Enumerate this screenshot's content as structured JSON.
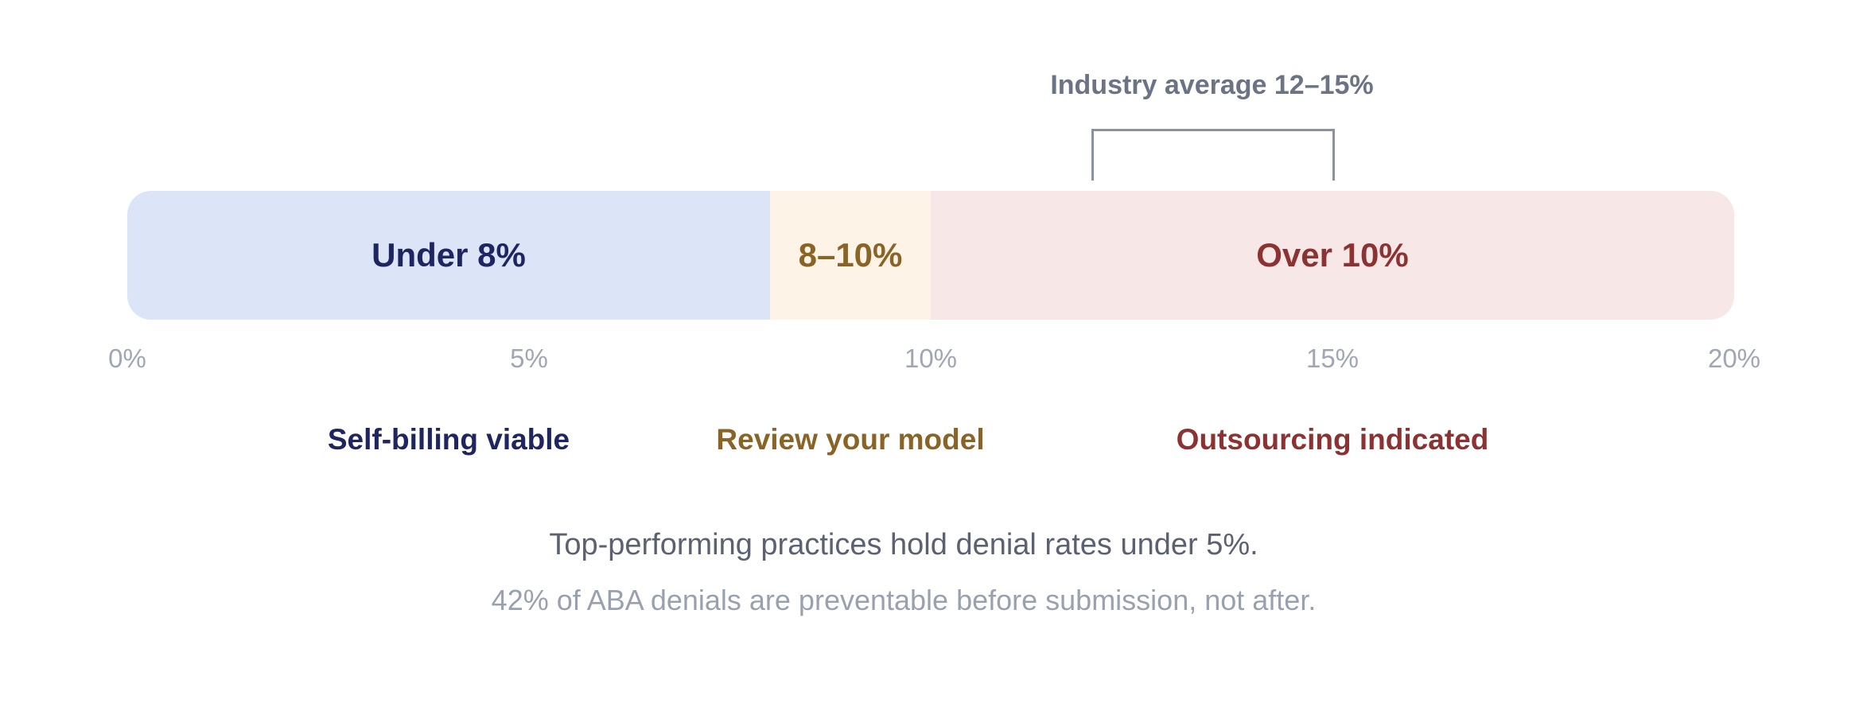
{
  "scale": {
    "min": 0,
    "max": 20,
    "unit": "%",
    "ticks": [
      "0%",
      "5%",
      "10%",
      "15%",
      "20%"
    ]
  },
  "zones": [
    {
      "label": "Under 8%",
      "from": 0,
      "to": 8,
      "fill": "#dce5f7",
      "text_color": "#1e2560",
      "caption": "Self-billing viable"
    },
    {
      "label": "8–10%",
      "from": 8,
      "to": 10,
      "fill": "#fdf3e6",
      "text_color": "#8a6326",
      "caption": "Review your model"
    },
    {
      "label": "Over 10%",
      "from": 10,
      "to": 20,
      "fill": "#f7e7e6",
      "text_color": "#8c3232",
      "caption": "Outsourcing indicated"
    }
  ],
  "industry_average": {
    "label": "Industry average 12–15%",
    "from": 12,
    "to": 15,
    "color": "#8a91a0"
  },
  "notes": [
    "Top-performing practices hold denial rates under 5%.",
    "42% of ABA denials are preventable before submission, not after."
  ]
}
